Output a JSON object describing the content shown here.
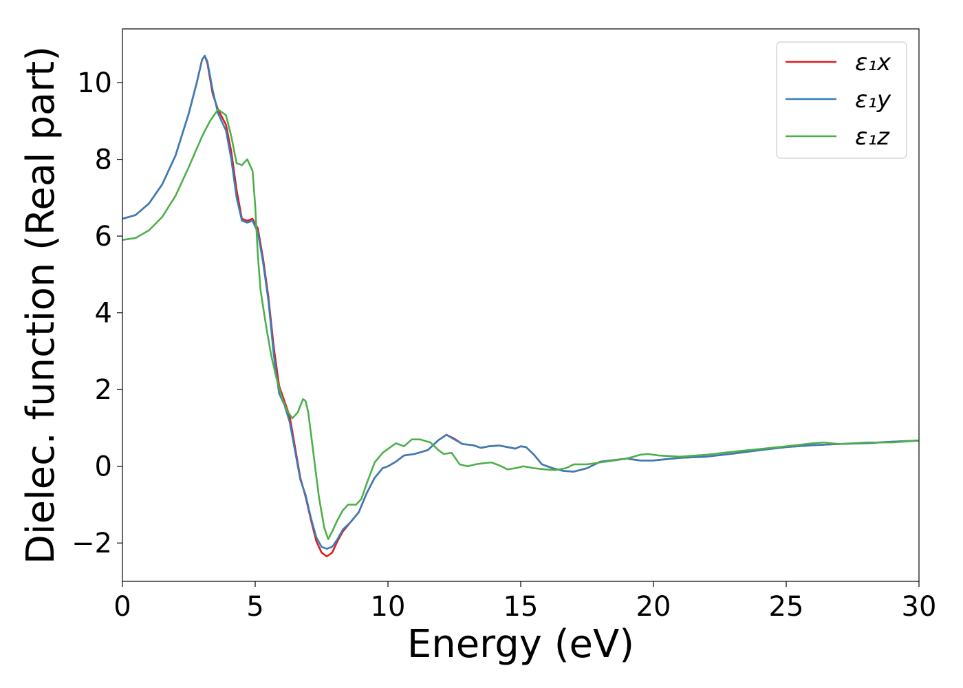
{
  "chart_data": {
    "type": "line",
    "xlabel": "Energy (eV)",
    "ylabel": "Dielec. function (Real part)",
    "xlim": [
      0,
      30
    ],
    "ylim": [
      -3,
      11.4
    ],
    "xticks": [
      0,
      5,
      10,
      15,
      20,
      25,
      30
    ],
    "xtick_labels": [
      "0",
      "5",
      "10",
      "15",
      "20",
      "25",
      "30"
    ],
    "yticks": [
      -2,
      0,
      2,
      4,
      6,
      8,
      10
    ],
    "ytick_labels": [
      "−2",
      "0",
      "2",
      "4",
      "6",
      "8",
      "10"
    ],
    "grid": false,
    "legend": "top-right",
    "series": [
      {
        "name": "ε₁x",
        "color": "#e41a1c",
        "x": [
          0,
          0.5,
          1.0,
          1.5,
          2.0,
          2.5,
          2.8,
          3.0,
          3.1,
          3.2,
          3.4,
          3.6,
          3.9,
          4.1,
          4.3,
          4.5,
          4.7,
          4.9,
          5.1,
          5.3,
          5.5,
          5.7,
          5.9,
          6.1,
          6.3,
          6.5,
          6.7,
          6.9,
          7.1,
          7.3,
          7.5,
          7.7,
          7.9,
          8.1,
          8.3,
          8.6,
          8.9,
          9.2,
          9.5,
          9.8,
          10.0,
          10.3,
          10.6,
          11.0,
          11.5,
          11.9,
          12.2,
          12.5,
          12.8,
          13.2,
          13.5,
          13.8,
          14.2,
          14.5,
          14.8,
          15.0,
          15.2,
          15.5,
          15.8,
          16.2,
          16.6,
          17.0,
          17.5,
          18.0,
          18.5,
          19.0,
          19.5,
          20.0,
          21.0,
          22.0,
          23.0,
          24.0,
          25.0,
          26.0,
          27.0,
          28.0,
          29.0,
          30.0
        ],
        "values": [
          6.45,
          6.55,
          6.85,
          7.35,
          8.1,
          9.2,
          10.0,
          10.6,
          10.7,
          10.5,
          9.7,
          9.3,
          8.9,
          8.2,
          7.2,
          6.45,
          6.4,
          6.45,
          6.2,
          5.4,
          4.4,
          3.1,
          2.1,
          1.7,
          1.3,
          0.5,
          -0.3,
          -0.8,
          -1.4,
          -1.95,
          -2.25,
          -2.35,
          -2.25,
          -1.95,
          -1.7,
          -1.45,
          -1.2,
          -0.7,
          -0.3,
          -0.05,
          0.0,
          0.12,
          0.28,
          0.32,
          0.42,
          0.68,
          0.82,
          0.72,
          0.58,
          0.55,
          0.48,
          0.52,
          0.54,
          0.5,
          0.46,
          0.52,
          0.5,
          0.3,
          0.05,
          -0.05,
          -0.12,
          -0.14,
          -0.05,
          0.12,
          0.16,
          0.2,
          0.15,
          0.15,
          0.22,
          0.25,
          0.33,
          0.42,
          0.5,
          0.55,
          0.58,
          0.6,
          0.64,
          0.67
        ]
      },
      {
        "name": "ε₁y",
        "color": "#377eb8",
        "x": [
          0,
          0.5,
          1.0,
          1.5,
          2.0,
          2.5,
          2.8,
          3.0,
          3.1,
          3.2,
          3.4,
          3.6,
          3.9,
          4.1,
          4.3,
          4.5,
          4.7,
          4.9,
          5.1,
          5.3,
          5.5,
          5.7,
          5.9,
          6.1,
          6.3,
          6.5,
          6.7,
          6.9,
          7.1,
          7.3,
          7.5,
          7.7,
          7.9,
          8.1,
          8.3,
          8.6,
          8.9,
          9.2,
          9.5,
          9.8,
          10.0,
          10.3,
          10.6,
          11.0,
          11.5,
          11.9,
          12.2,
          12.5,
          12.8,
          13.2,
          13.5,
          13.8,
          14.2,
          14.5,
          14.8,
          15.0,
          15.2,
          15.5,
          15.8,
          16.2,
          16.6,
          17.0,
          17.5,
          18.0,
          18.5,
          19.0,
          19.5,
          20.0,
          21.0,
          22.0,
          23.0,
          24.0,
          25.0,
          26.0,
          27.0,
          28.0,
          29.0,
          30.0
        ],
        "values": [
          6.45,
          6.55,
          6.85,
          7.35,
          8.1,
          9.2,
          10.0,
          10.6,
          10.7,
          10.55,
          9.8,
          9.2,
          8.75,
          8.0,
          7.0,
          6.4,
          6.35,
          6.4,
          6.1,
          5.3,
          4.3,
          2.9,
          1.9,
          1.6,
          1.15,
          0.4,
          -0.35,
          -0.75,
          -1.35,
          -1.85,
          -2.1,
          -2.15,
          -2.1,
          -1.9,
          -1.65,
          -1.45,
          -1.2,
          -0.7,
          -0.3,
          -0.05,
          0.0,
          0.12,
          0.28,
          0.32,
          0.42,
          0.68,
          0.82,
          0.7,
          0.58,
          0.55,
          0.48,
          0.52,
          0.54,
          0.5,
          0.46,
          0.52,
          0.5,
          0.3,
          0.05,
          -0.05,
          -0.12,
          -0.14,
          -0.05,
          0.12,
          0.16,
          0.2,
          0.15,
          0.15,
          0.22,
          0.25,
          0.33,
          0.42,
          0.5,
          0.55,
          0.58,
          0.6,
          0.64,
          0.67
        ]
      },
      {
        "name": "ε₁z",
        "color": "#4daf4a",
        "x": [
          0,
          0.5,
          1.0,
          1.5,
          2.0,
          2.5,
          3.0,
          3.3,
          3.6,
          3.9,
          4.1,
          4.3,
          4.5,
          4.7,
          4.9,
          5.0,
          5.1,
          5.2,
          5.4,
          5.6,
          5.8,
          6.0,
          6.2,
          6.4,
          6.6,
          6.8,
          6.9,
          7.0,
          7.2,
          7.4,
          7.6,
          7.75,
          7.9,
          8.1,
          8.3,
          8.5,
          8.8,
          9.0,
          9.2,
          9.5,
          9.8,
          10.0,
          10.3,
          10.6,
          10.9,
          11.2,
          11.6,
          11.9,
          12.1,
          12.4,
          12.7,
          13.0,
          13.3,
          13.6,
          13.9,
          14.2,
          14.5,
          14.8,
          15.1,
          15.5,
          15.9,
          16.3,
          16.7,
          17.0,
          17.5,
          18.0,
          18.5,
          19.0,
          19.5,
          19.8,
          20.2,
          21.0,
          22.0,
          23.0,
          24.0,
          25.0,
          26.0,
          26.4,
          27.0,
          28.0,
          29.0,
          30.0
        ],
        "values": [
          5.9,
          5.95,
          6.15,
          6.5,
          7.05,
          7.8,
          8.6,
          9.0,
          9.3,
          9.15,
          8.6,
          7.9,
          7.85,
          8.0,
          7.7,
          6.8,
          5.5,
          4.6,
          3.7,
          2.9,
          2.3,
          1.8,
          1.45,
          1.25,
          1.4,
          1.75,
          1.7,
          1.4,
          0.3,
          -0.8,
          -1.6,
          -1.9,
          -1.7,
          -1.4,
          -1.15,
          -1.0,
          -1.0,
          -0.85,
          -0.45,
          0.1,
          0.35,
          0.45,
          0.6,
          0.52,
          0.7,
          0.7,
          0.62,
          0.42,
          0.32,
          0.35,
          0.05,
          0.0,
          0.05,
          0.08,
          0.1,
          0.02,
          -0.08,
          -0.05,
          0.0,
          -0.05,
          -0.08,
          -0.1,
          -0.05,
          0.05,
          0.05,
          0.1,
          0.15,
          0.2,
          0.3,
          0.32,
          0.28,
          0.25,
          0.3,
          0.38,
          0.45,
          0.52,
          0.6,
          0.62,
          0.58,
          0.62,
          0.62,
          0.67
        ]
      }
    ]
  }
}
